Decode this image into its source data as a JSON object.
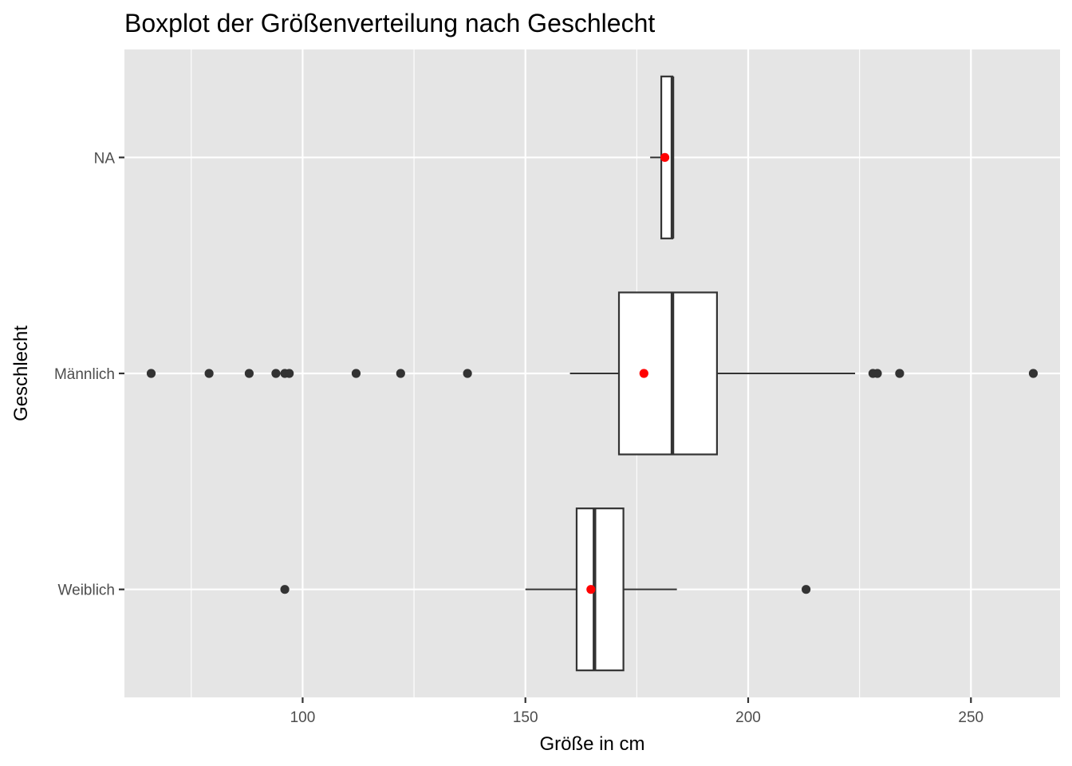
{
  "chart_data": {
    "type": "boxplot",
    "title": "Boxplot der Größenverteilung nach Geschlecht",
    "xlabel": "Größe in cm",
    "ylabel": "Geschlecht",
    "xlim": [
      60,
      270
    ],
    "x_ticks": [
      100,
      150,
      200,
      250
    ],
    "x_minor_ticks": [
      75,
      125,
      175,
      225
    ],
    "categories": [
      "NA",
      "Männlich",
      "Weiblich"
    ],
    "grid": true,
    "colors": {
      "panel_background": "#e5e5e5",
      "grid": "#ffffff",
      "box_fill": "#ffffff",
      "box_outline": "#333333",
      "outlier": "#333333",
      "mean_point": "#ff0000",
      "tick_label": "#4d4d4d"
    },
    "series": [
      {
        "category": "NA",
        "whisker_low": 178,
        "q1": 180.5,
        "median": 183,
        "q3": 183,
        "whisker_high": 183,
        "mean": 181.3,
        "outliers": []
      },
      {
        "category": "Männlich",
        "whisker_low": 160,
        "q1": 171,
        "median": 183,
        "q3": 193,
        "whisker_high": 224,
        "mean": 176.6,
        "outliers": [
          66,
          79,
          88,
          94,
          96,
          97,
          112,
          122,
          137,
          228,
          229,
          234,
          264
        ]
      },
      {
        "category": "Weiblich",
        "whisker_low": 150,
        "q1": 161.5,
        "median": 165.5,
        "q3": 172,
        "whisker_high": 184,
        "mean": 164.7,
        "outliers": [
          96,
          213
        ]
      }
    ]
  }
}
